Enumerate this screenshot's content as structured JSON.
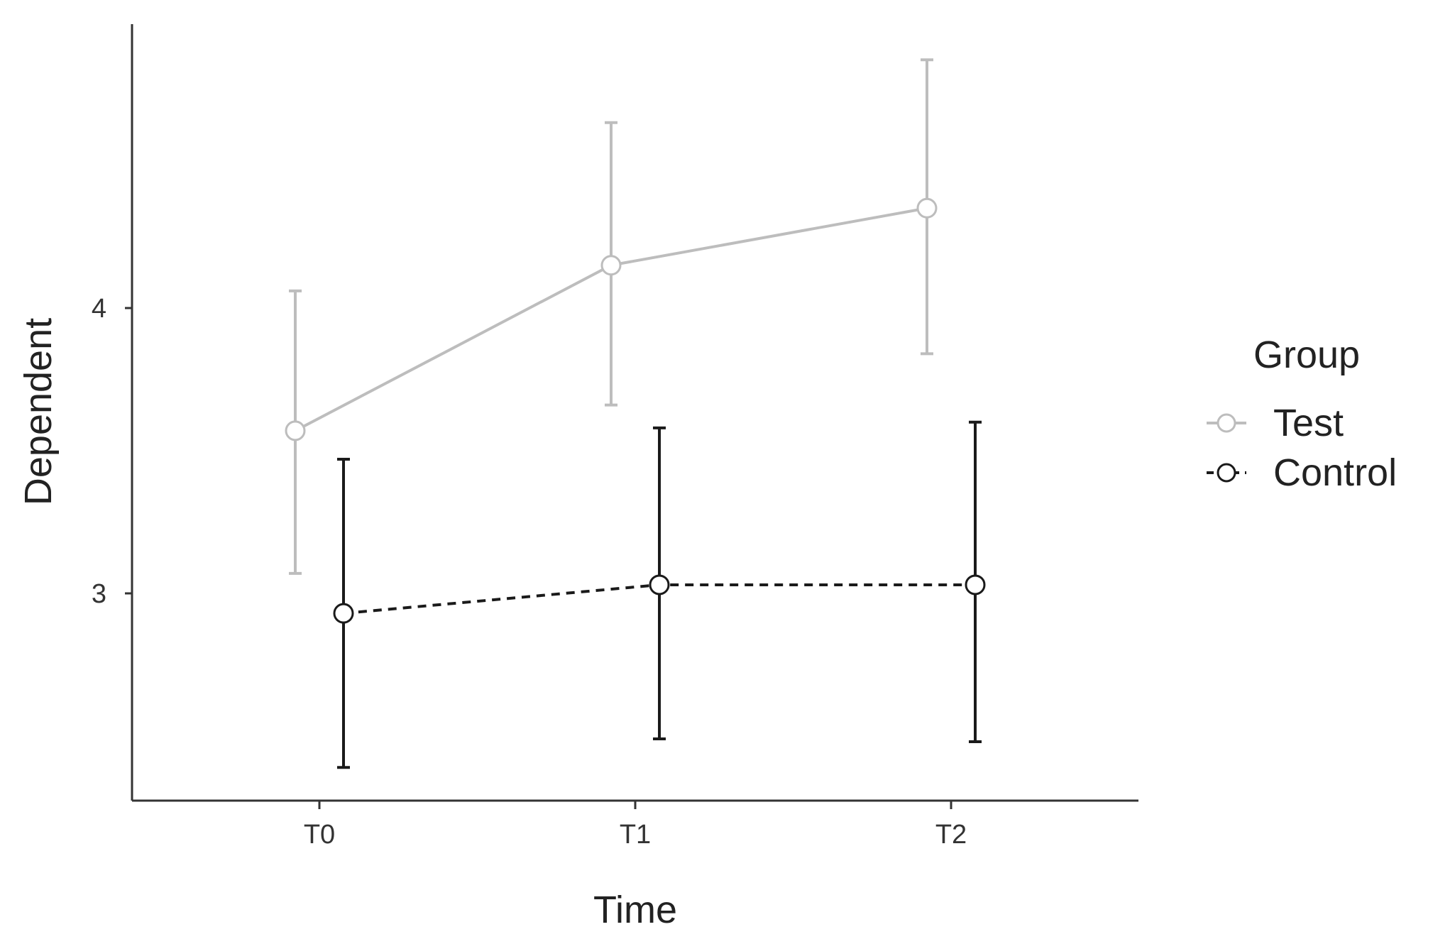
{
  "chart_data": {
    "type": "line",
    "xlabel": "Time",
    "ylabel": "Dependent",
    "categories": [
      "T0",
      "T1",
      "T2"
    ],
    "y_ticks": [
      3,
      4
    ],
    "ylim": [
      2.26,
      4.99
    ],
    "grid": false,
    "legend": {
      "title": "Group",
      "placement": "right"
    },
    "series": [
      {
        "name": "Test",
        "values": [
          3.57,
          4.15,
          4.35
        ],
        "error_lower": [
          3.07,
          3.66,
          3.84
        ],
        "error_upper": [
          4.06,
          4.65,
          4.87
        ],
        "color": "#bdbdbd",
        "line_style": "solid"
      },
      {
        "name": "Control",
        "values": [
          2.93,
          3.03,
          3.03
        ],
        "error_lower": [
          2.39,
          2.49,
          2.48
        ],
        "error_upper": [
          3.47,
          3.58,
          3.6
        ],
        "color": "#1a1a1a",
        "line_style": "dashed"
      }
    ]
  }
}
